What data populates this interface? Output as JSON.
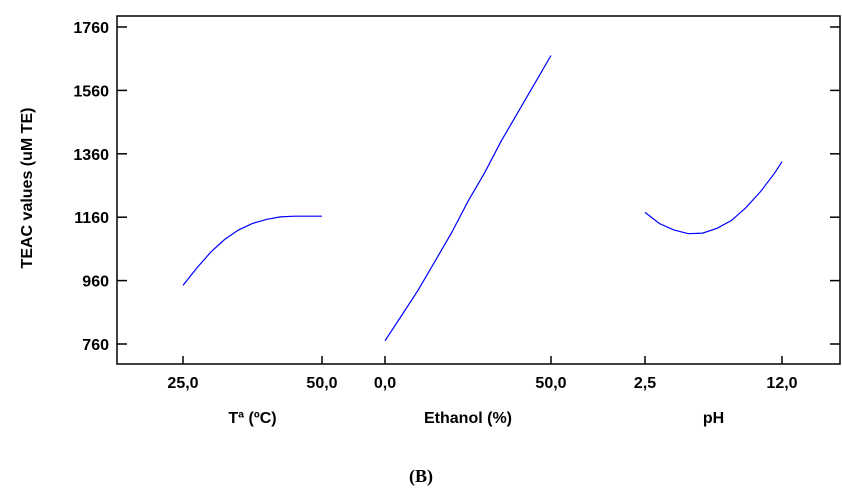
{
  "chart_data": {
    "type": "line",
    "ylabel": "TEAC values (uM TE)",
    "ylim": [
      700,
      1800
    ],
    "yticks": [
      760,
      960,
      1160,
      1360,
      1560,
      1760
    ],
    "line_color": "#0000ff",
    "axis_color": "#000000",
    "panels": [
      {
        "xlabel": "Tª (ºC)",
        "tick_labels": [
          "25,0",
          "50,0"
        ],
        "x": [
          25,
          27.5,
          30,
          32.5,
          35,
          37.5,
          40,
          42.5,
          45,
          47.5,
          50
        ],
        "y": [
          945,
          1000,
          1050,
          1090,
          1120,
          1140,
          1153,
          1161,
          1163,
          1163,
          1163
        ]
      },
      {
        "xlabel": "Ethanol (%)",
        "tick_labels": [
          "0,0",
          "50,0"
        ],
        "x": [
          0,
          5,
          10,
          15,
          20,
          25,
          30,
          35,
          40,
          45,
          50
        ],
        "y": [
          770,
          850,
          930,
          1020,
          1110,
          1210,
          1300,
          1400,
          1490,
          1580,
          1670
        ]
      },
      {
        "xlabel": "pH",
        "tick_labels": [
          "2,5",
          "12,0"
        ],
        "x": [
          2.5,
          3.5,
          4.5,
          5.5,
          6.5,
          7.5,
          8.5,
          9.5,
          10.5,
          11.5,
          12
        ],
        "y": [
          1175,
          1140,
          1120,
          1108,
          1110,
          1125,
          1150,
          1190,
          1240,
          1300,
          1335
        ]
      }
    ]
  },
  "caption": "(B)"
}
